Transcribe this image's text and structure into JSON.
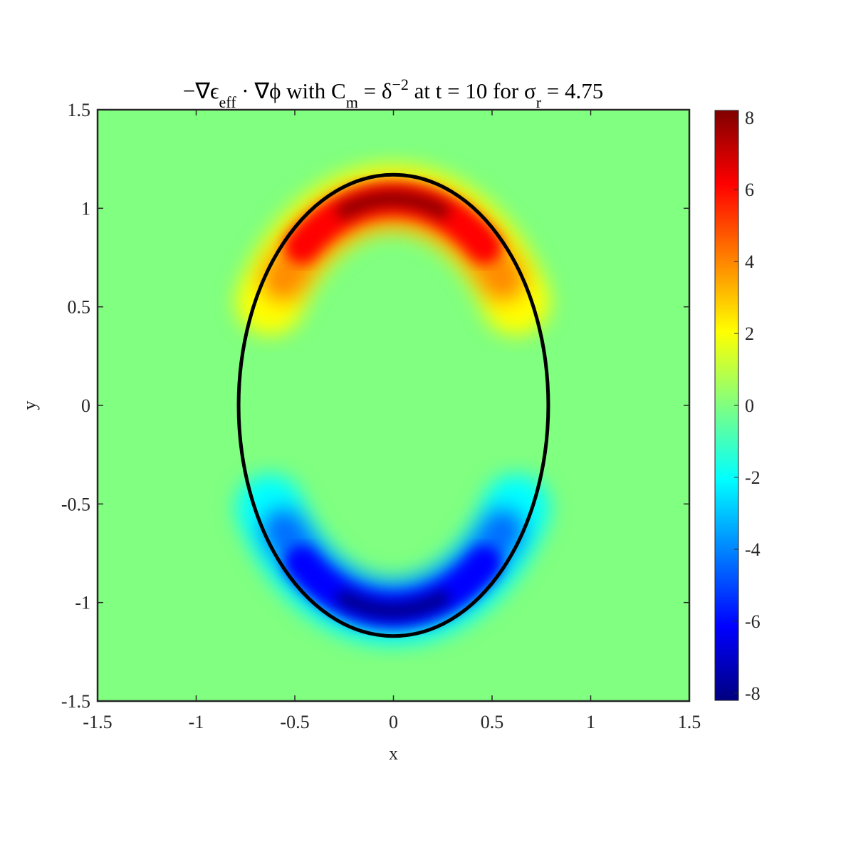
{
  "chart_data": {
    "type": "heatmap",
    "title": [
      {
        "text": "−∇ϵ"
      },
      {
        "text": "eff",
        "shift": "sub"
      },
      {
        "text": " · ∇ϕ with C"
      },
      {
        "text": "m",
        "shift": "sub"
      },
      {
        "text": " = δ"
      },
      {
        "text": "−2",
        "shift": "sup"
      },
      {
        "text": " at t = 10 for σ"
      },
      {
        "text": "r",
        "shift": "sub"
      },
      {
        "text": " = 4.75"
      }
    ],
    "xlabel": "x",
    "ylabel": "y",
    "xlim": [
      -1.5,
      1.5
    ],
    "ylim": [
      -1.5,
      1.5
    ],
    "xticks": [
      -1.5,
      -1,
      -0.5,
      0,
      0.5,
      1,
      1.5
    ],
    "yticks": [
      -1.5,
      -1,
      -0.5,
      0,
      0.5,
      1,
      1.5
    ],
    "colormap": "jet",
    "colorbar": {
      "clim": [
        -8.2,
        8.2
      ],
      "ticks": [
        -8,
        -6,
        -4,
        -2,
        0,
        2,
        4,
        6,
        8
      ]
    },
    "contour": {
      "center": [
        0,
        0
      ],
      "radii": [
        0.785,
        1.17
      ],
      "color": "#000000"
    }
  }
}
